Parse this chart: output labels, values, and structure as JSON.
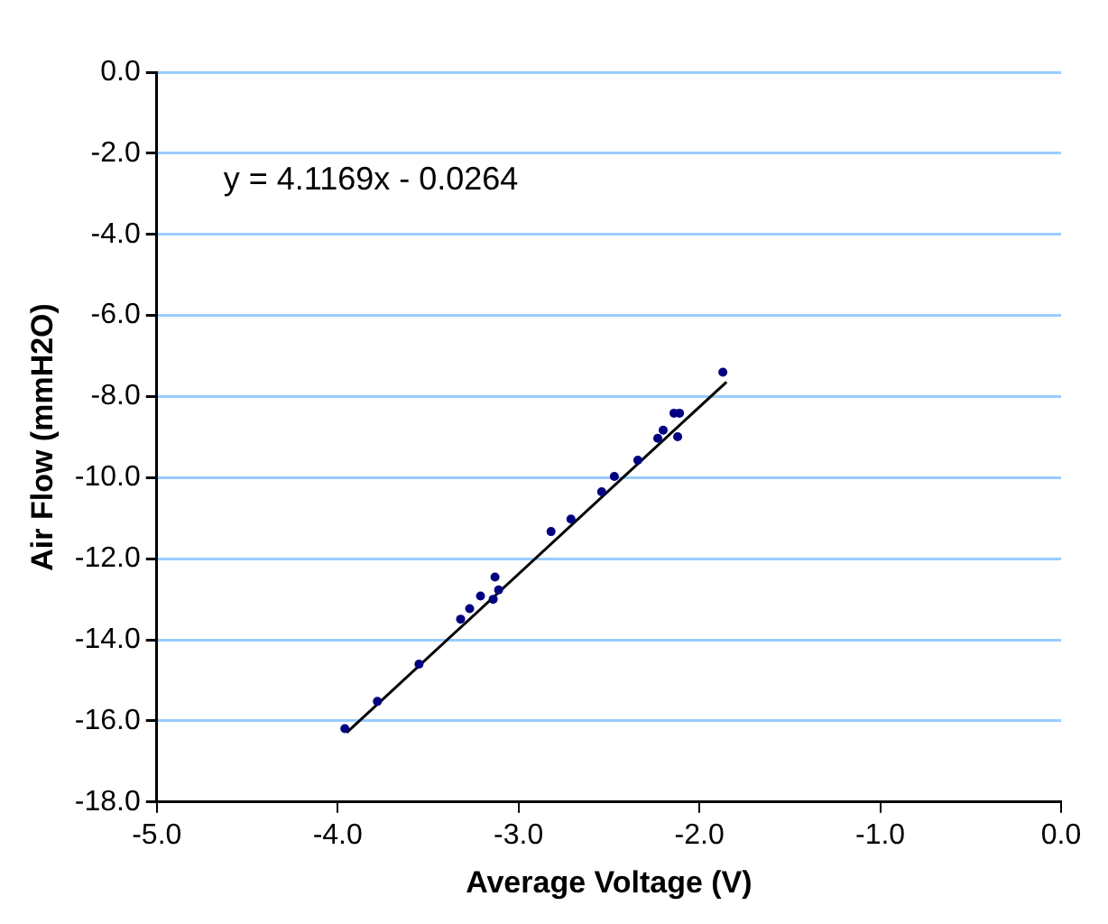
{
  "chart_data": {
    "type": "scatter",
    "xlabel": "Average Voltage (V)",
    "ylabel": "Air Flow (mmH2O)",
    "xlim": [
      -5,
      0
    ],
    "xticks": [
      {
        "value": -5,
        "label": "-5.0"
      },
      {
        "value": -4,
        "label": "-4.0"
      },
      {
        "value": -3,
        "label": "-3.0"
      },
      {
        "value": -2,
        "label": "-2.0"
      },
      {
        "value": -1,
        "label": "-1.0"
      },
      {
        "value": 0,
        "label": "0.0"
      }
    ],
    "ylim": [
      -18,
      0
    ],
    "yticks": [
      {
        "value": -18,
        "label": "-18.0"
      },
      {
        "value": -16,
        "label": "-16.0"
      },
      {
        "value": -14,
        "label": "-14.0"
      },
      {
        "value": -12,
        "label": "-12.0"
      },
      {
        "value": -10,
        "label": "-10.0"
      },
      {
        "value": -8,
        "label": "-8.0"
      },
      {
        "value": -6,
        "label": "-6.0"
      },
      {
        "value": -4,
        "label": "-4.0"
      },
      {
        "value": -2,
        "label": "-2.0"
      },
      {
        "value": 0,
        "label": "0.0"
      }
    ],
    "grid": "y",
    "legend": false,
    "annotations": [
      "y = 4.1169x - 0.0264"
    ],
    "series": [
      {
        "color": "#000080",
        "marker": "circle",
        "x": [
          -3.96,
          -3.78,
          -3.55,
          -3.32,
          -3.27,
          -3.21,
          -3.14,
          -3.13,
          -3.11,
          -2.82,
          -2.71,
          -2.54,
          -2.47,
          -2.34,
          -2.23,
          -2.2,
          -2.12,
          -2.14,
          -2.11,
          -1.87
        ],
        "values": [
          -16.19,
          -15.52,
          -14.6,
          -13.49,
          -13.23,
          -12.92,
          -13.0,
          -12.45,
          -12.77,
          -11.33,
          -11.02,
          -10.35,
          -9.97,
          -9.57,
          -9.03,
          -8.83,
          -8.99,
          -8.41,
          -8.41,
          -7.4
        ]
      },
      {
        "type": "line",
        "color": "#000000",
        "x": [
          -3.95,
          -1.85
        ],
        "values": [
          -16.29,
          -7.64
        ]
      }
    ]
  }
}
